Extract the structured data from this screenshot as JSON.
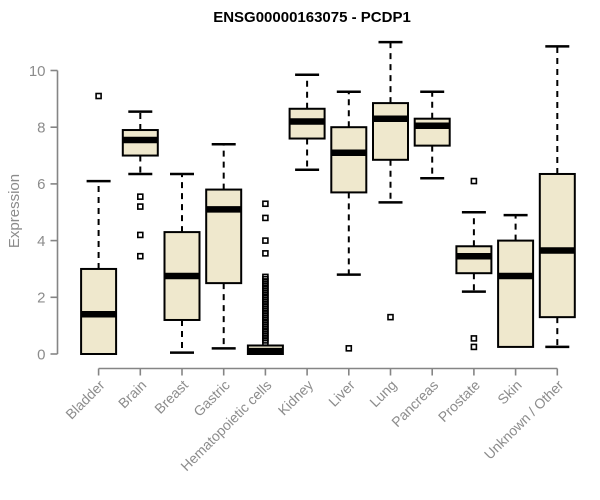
{
  "chart_data": {
    "type": "boxplot",
    "title": "ENSG00000163075 - PCDP1",
    "ylabel": "Expression",
    "xlabel": "",
    "ylim": [
      0,
      10
    ],
    "yticks": [
      0,
      2,
      4,
      6,
      8,
      10
    ],
    "grid": false,
    "legend": "none",
    "categories": [
      "Bladder",
      "Brain",
      "Breast",
      "Gastric",
      "Hematopoietic cells",
      "Kidney",
      "Liver",
      "Lung",
      "Pancreas",
      "Prostate",
      "Skin",
      "Unknown / Other"
    ],
    "boxes": [
      {
        "category": "Bladder",
        "whisker_low": 0,
        "q1": 0,
        "median": 1.4,
        "q3": 3.0,
        "whisker_high": 6.1,
        "outliers": [
          9.1
        ]
      },
      {
        "category": "Brain",
        "whisker_low": 6.35,
        "q1": 7.0,
        "median": 7.55,
        "q3": 7.9,
        "whisker_high": 8.55,
        "outliers": [
          5.55,
          5.2,
          4.2,
          3.45
        ]
      },
      {
        "category": "Breast",
        "whisker_low": 0.05,
        "q1": 1.2,
        "median": 2.75,
        "q3": 4.3,
        "whisker_high": 6.35,
        "outliers": []
      },
      {
        "category": "Gastric",
        "whisker_low": 0.2,
        "q1": 2.5,
        "median": 5.1,
        "q3": 5.8,
        "whisker_high": 7.4,
        "outliers": []
      },
      {
        "category": "Hematopoietic cells",
        "whisker_low": 0,
        "q1": 0,
        "median": 0.1,
        "q3": 0.3,
        "whisker_high": 0.3,
        "outliers": [
          0.4,
          0.48,
          0.56,
          0.64,
          0.72,
          0.8,
          0.88,
          0.96,
          1.04,
          1.12,
          1.2,
          1.28,
          1.36,
          1.44,
          1.52,
          1.6,
          1.68,
          1.76,
          1.84,
          1.92,
          2.0,
          2.08,
          2.16,
          2.24,
          2.32,
          2.4,
          2.48,
          2.56,
          2.64,
          2.72,
          3.55,
          4.0,
          4.8,
          5.3
        ]
      },
      {
        "category": "Kidney",
        "whisker_low": 6.5,
        "q1": 7.6,
        "median": 8.2,
        "q3": 8.65,
        "whisker_high": 9.85,
        "outliers": []
      },
      {
        "category": "Liver",
        "whisker_low": 2.8,
        "q1": 5.7,
        "median": 7.1,
        "q3": 8.0,
        "whisker_high": 9.25,
        "outliers": [
          0.2
        ]
      },
      {
        "category": "Lung",
        "whisker_low": 5.35,
        "q1": 6.85,
        "median": 8.3,
        "q3": 8.85,
        "whisker_high": 11.0,
        "outliers": [
          1.3
        ]
      },
      {
        "category": "Pancreas",
        "whisker_low": 6.2,
        "q1": 7.35,
        "median": 8.05,
        "q3": 8.3,
        "whisker_high": 9.25,
        "outliers": []
      },
      {
        "category": "Prostate",
        "whisker_low": 2.2,
        "q1": 2.85,
        "median": 3.45,
        "q3": 3.8,
        "whisker_high": 5.0,
        "outliers": [
          6.1,
          0.55,
          0.25
        ]
      },
      {
        "category": "Skin",
        "whisker_low": 0.25,
        "q1": 0.25,
        "median": 2.75,
        "q3": 4.0,
        "whisker_high": 4.9,
        "outliers": []
      },
      {
        "category": "Unknown / Other",
        "whisker_low": 0.25,
        "q1": 1.3,
        "median": 3.65,
        "q3": 6.35,
        "whisker_high": 10.85,
        "outliers": []
      }
    ],
    "colors": {
      "box_fill": "#EFE8CD",
      "box_border": "#000000",
      "median": "#000000",
      "whisker": "#000000",
      "outlier": "#000000",
      "axis": "#858585",
      "tick_label": "#8c8c8c",
      "title_text": "#000000",
      "background": "#FFFFFF"
    }
  }
}
